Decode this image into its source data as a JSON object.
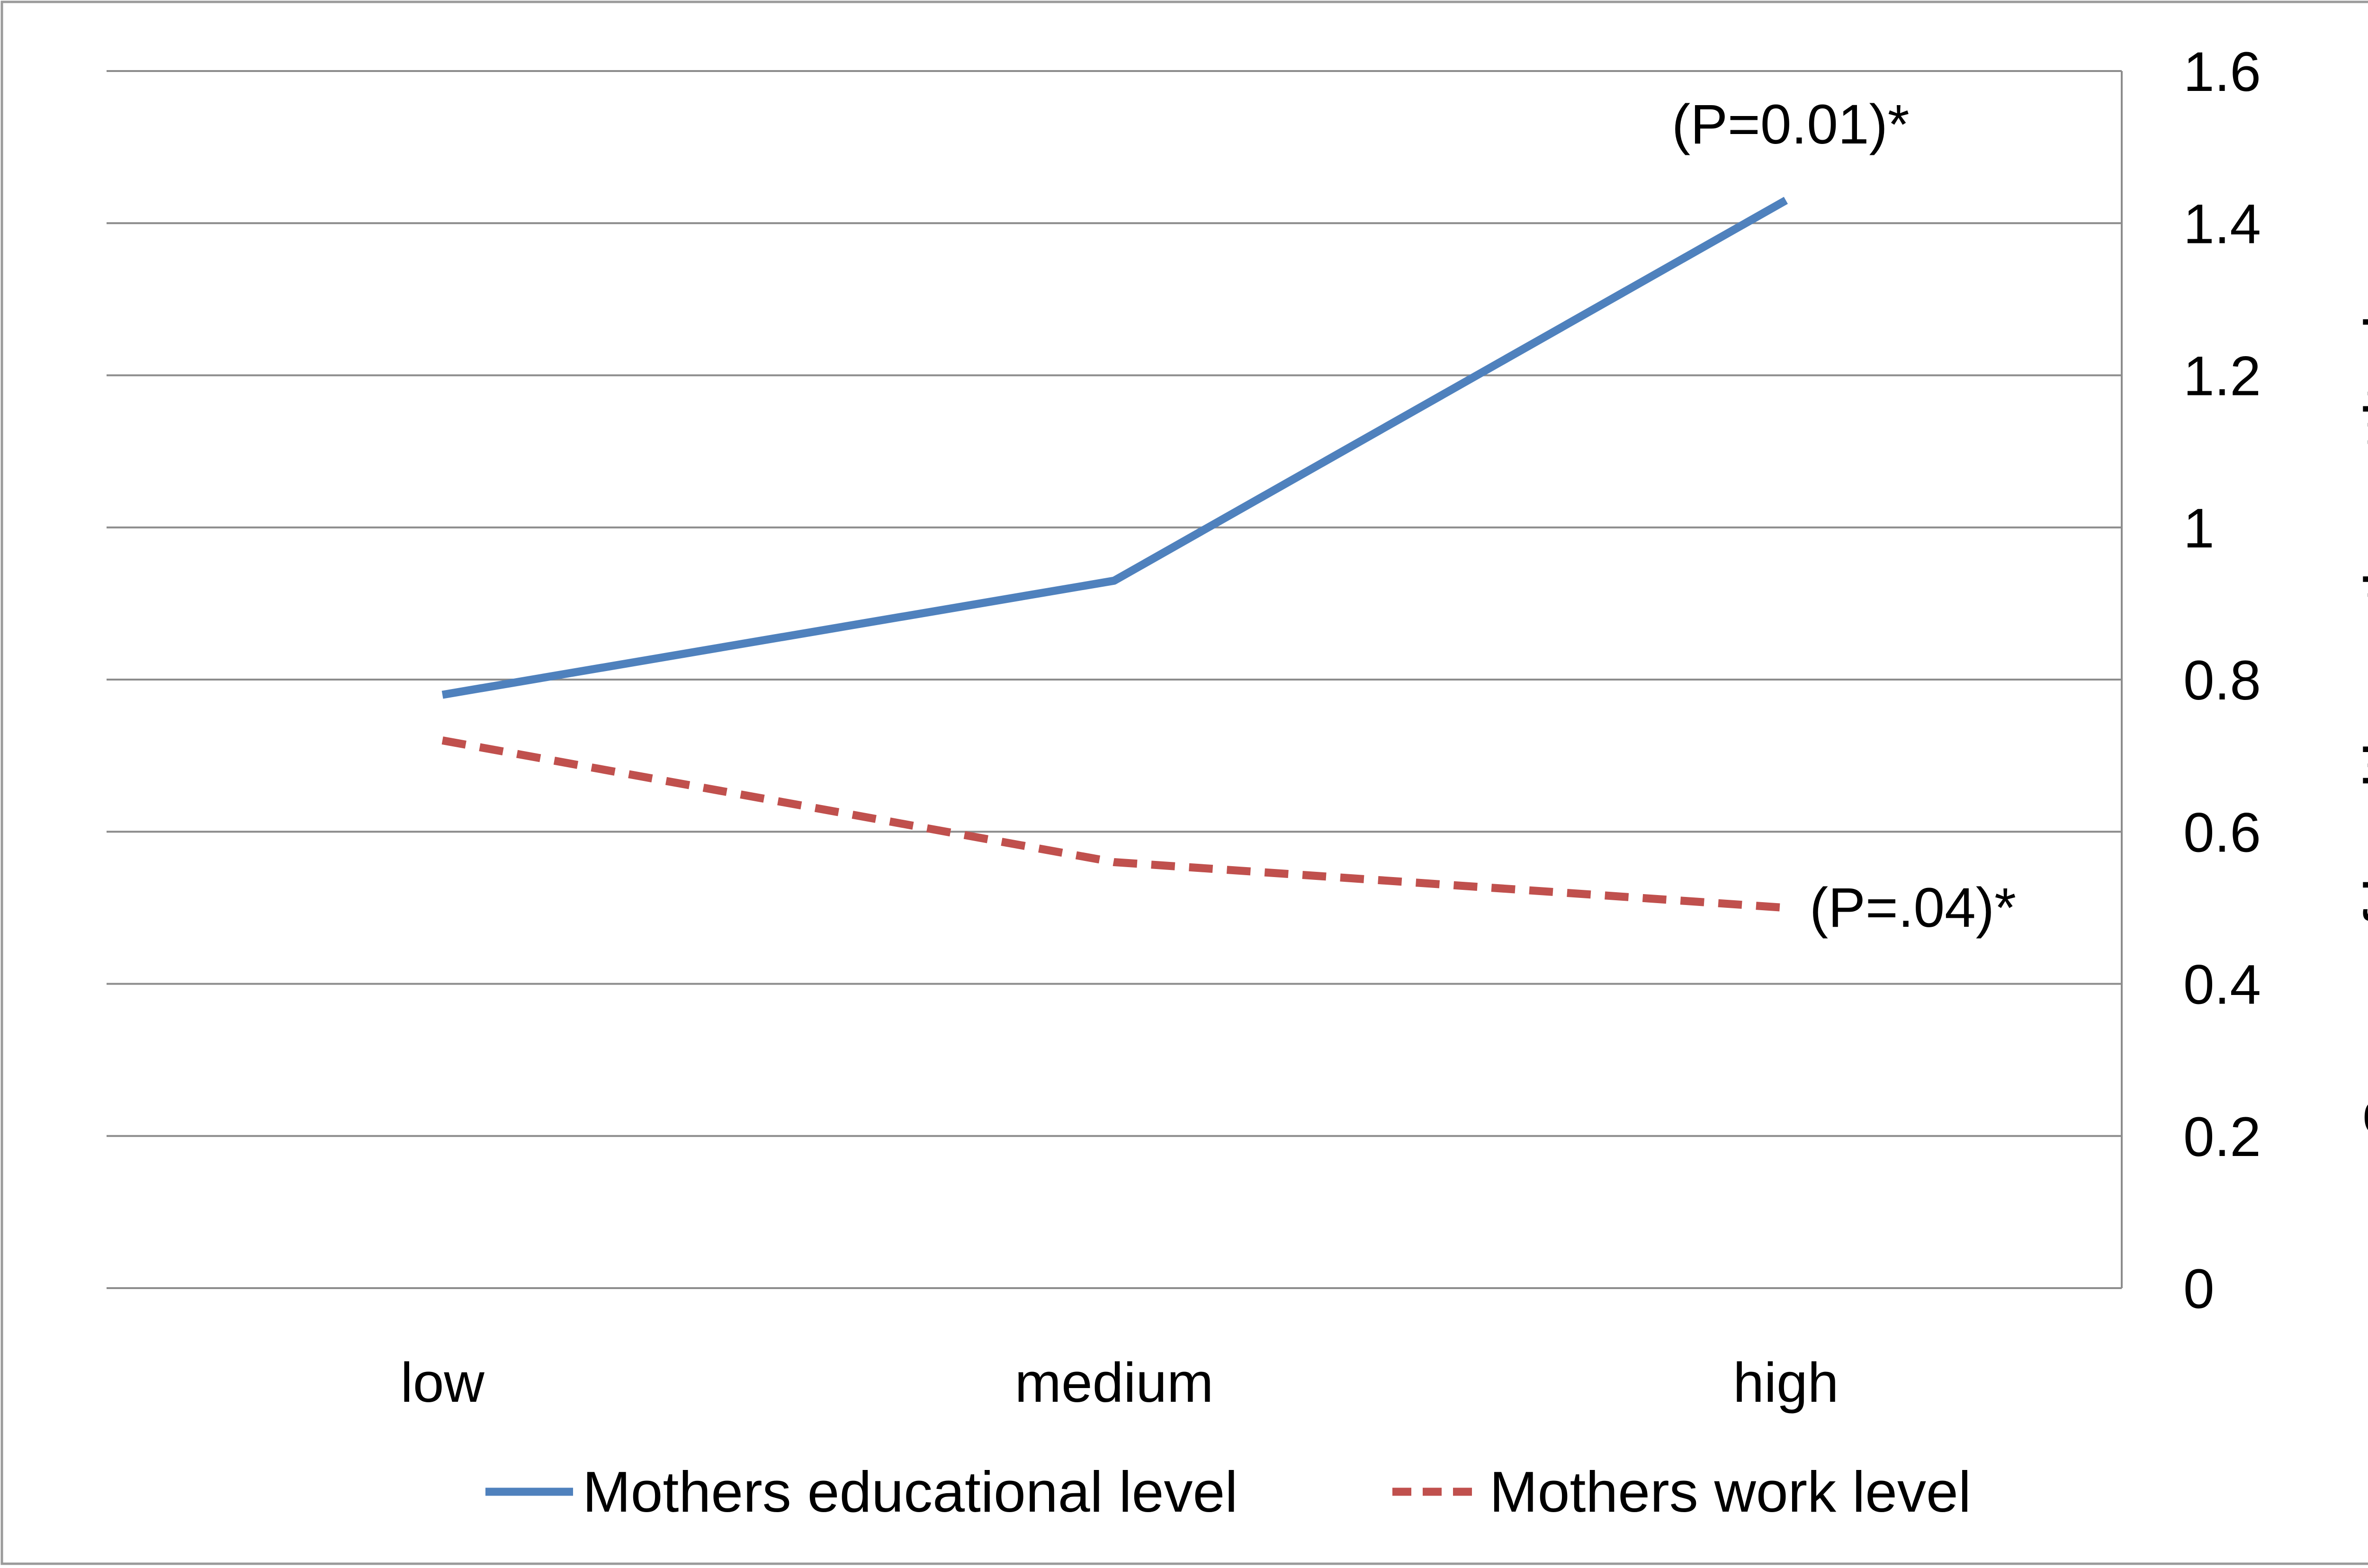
{
  "chart_data": {
    "type": "line",
    "title": "",
    "xlabel": "",
    "ylabel": "Scors of healthy eating attitudes",
    "categories": [
      "low",
      "medium",
      "high"
    ],
    "series": [
      {
        "name": "Mothers educational level",
        "values": [
          0.78,
          0.93,
          1.43
        ],
        "color": "#4F81BD",
        "line_style": "solid",
        "annotation": "(P=0.01)*"
      },
      {
        "name": "Mothers work level",
        "values": [
          0.72,
          0.56,
          0.5
        ],
        "color": "#C0504D",
        "line_style": "dashed",
        "annotation": "(P=.04)*"
      }
    ],
    "ylim": [
      0,
      1.6
    ],
    "y_ticks": [
      "0",
      "0.2",
      "0.4",
      "0.6",
      "0.8",
      "1",
      "1.2",
      "1.4",
      "1.6"
    ],
    "y_axis_position": "right",
    "grid": true,
    "legend_position": "bottom"
  }
}
